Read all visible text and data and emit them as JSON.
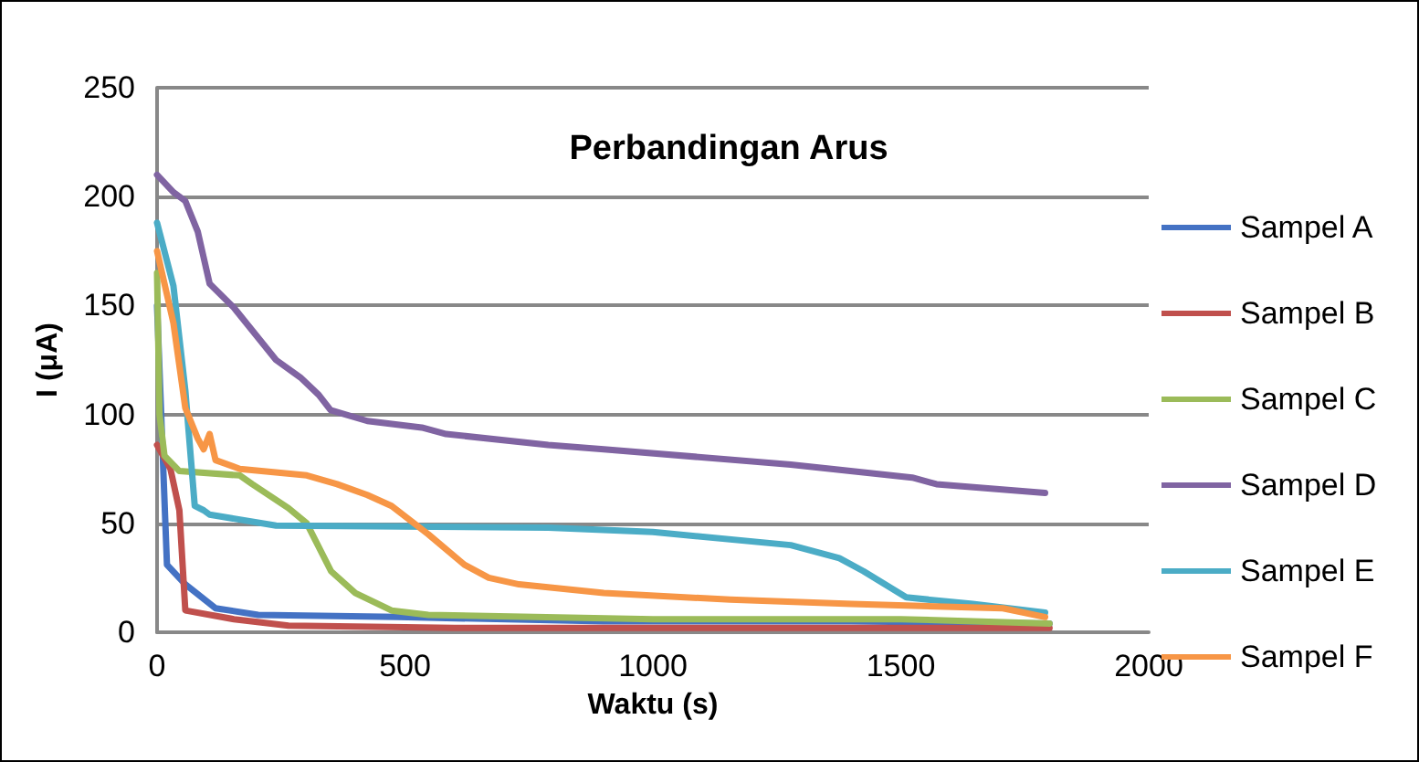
{
  "chart_data": {
    "type": "line",
    "title": "Perbandingan Arus",
    "xlabel": "Waktu (s)",
    "ylabel": "I (μA)",
    "xlim": [
      0,
      2000
    ],
    "xticks": [
      0,
      500,
      1000,
      1500,
      2000
    ],
    "ylim": [
      0,
      250
    ],
    "yticks": [
      0,
      50,
      100,
      150,
      200,
      250
    ],
    "grid": "y",
    "legend": "right",
    "marker": "none",
    "line_style": "solid",
    "series": [
      {
        "name": "Sampel A",
        "color": "#4472c4",
        "x": [
          0,
          10,
          20,
          57,
          118,
          204,
          486,
          900,
          1400,
          1800
        ],
        "values": [
          150,
          90,
          31,
          22,
          11,
          8,
          7,
          5,
          5,
          4
        ]
      },
      {
        "name": "Sampel B",
        "color": "#c0504d",
        "x": [
          0,
          27,
          45,
          57,
          155,
          265,
          600,
          1200,
          1800
        ],
        "values": [
          86,
          75,
          56,
          10,
          6,
          3,
          2,
          2,
          2
        ]
      },
      {
        "name": "Sampel C",
        "color": "#9bbb59",
        "x": [
          0,
          5,
          15,
          45,
          167,
          192,
          265,
          302,
          351,
          400,
          473,
          547,
          1000,
          1500,
          1800
        ],
        "values": [
          165,
          100,
          81,
          74,
          72,
          68,
          57,
          50,
          28,
          18,
          10,
          8,
          6,
          6,
          4
        ]
      },
      {
        "name": "Sampel D",
        "color": "#8064a2",
        "x": [
          0,
          33,
          57,
          82,
          106,
          155,
          240,
          289,
          326,
          350,
          424,
          534,
          583,
          789,
          901,
          1278,
          1523,
          1572,
          1791
        ],
        "values": [
          210,
          202,
          198,
          184,
          160,
          149,
          125,
          117,
          109,
          102,
          97,
          94,
          91,
          86,
          84,
          77,
          71,
          68,
          64
        ]
      },
      {
        "name": "Sampel E",
        "color": "#4bacc6",
        "x": [
          0,
          33,
          57,
          76,
          94,
          106,
          240,
          789,
          1000,
          1278,
          1376,
          1425,
          1511,
          1645,
          1791
        ],
        "values": [
          188,
          159,
          111,
          58,
          56,
          54,
          49,
          48,
          46,
          40,
          34,
          28,
          16,
          13,
          9
        ]
      },
      {
        "name": "Sampel F",
        "color": "#f79646",
        "x": [
          0,
          33,
          57,
          82,
          94,
          106,
          118,
          167,
          302,
          363,
          424,
          473,
          547,
          620,
          669,
          730,
          901,
          1156,
          1401,
          1706,
          1791
        ],
        "values": [
          175,
          142,
          103,
          89,
          84,
          91,
          79,
          75,
          72,
          68,
          63,
          58,
          45,
          31,
          25,
          22,
          18,
          15,
          13,
          11,
          7
        ]
      }
    ]
  }
}
